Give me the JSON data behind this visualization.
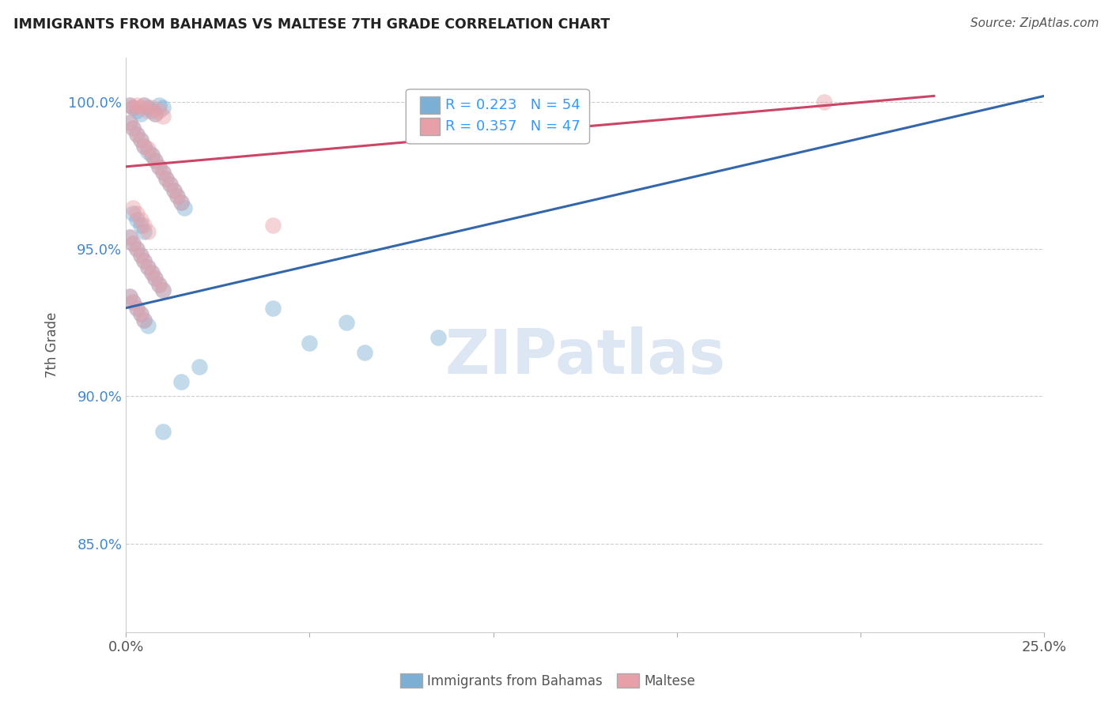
{
  "title": "IMMIGRANTS FROM BAHAMAS VS MALTESE 7TH GRADE CORRELATION CHART",
  "source": "Source: ZipAtlas.com",
  "ylabel": "7th Grade",
  "ytick_labels": [
    "100.0%",
    "95.0%",
    "90.0%",
    "85.0%"
  ],
  "ytick_values": [
    1.0,
    0.95,
    0.9,
    0.85
  ],
  "xlim": [
    0.0,
    0.25
  ],
  "ylim": [
    0.82,
    1.015
  ],
  "blue_color": "#7bafd4",
  "pink_color": "#e8a0a8",
  "blue_line_color": "#3366aa",
  "pink_line_color": "#cc4466",
  "R_blue": 0.223,
  "N_blue": 54,
  "R_pink": 0.357,
  "N_pink": 47,
  "blue_line_x": [
    0.0,
    0.25
  ],
  "blue_line_y": [
    0.93,
    1.002
  ],
  "pink_line_x": [
    0.0,
    0.22
  ],
  "pink_line_y": [
    0.978,
    1.002
  ],
  "blue_x": [
    0.001,
    0.002,
    0.003,
    0.004,
    0.005,
    0.006,
    0.007,
    0.008,
    0.009,
    0.01,
    0.001,
    0.002,
    0.003,
    0.004,
    0.005,
    0.006,
    0.007,
    0.008,
    0.009,
    0.01,
    0.011,
    0.012,
    0.013,
    0.014,
    0.015,
    0.016,
    0.002,
    0.003,
    0.004,
    0.005,
    0.001,
    0.002,
    0.003,
    0.004,
    0.005,
    0.006,
    0.007,
    0.008,
    0.009,
    0.01,
    0.001,
    0.002,
    0.003,
    0.004,
    0.005,
    0.006,
    0.04,
    0.06,
    0.085,
    0.05,
    0.065,
    0.02,
    0.015,
    0.01
  ],
  "blue_y": [
    0.999,
    0.998,
    0.997,
    0.996,
    0.999,
    0.998,
    0.997,
    0.996,
    0.999,
    0.998,
    0.993,
    0.991,
    0.989,
    0.987,
    0.985,
    0.983,
    0.982,
    0.98,
    0.978,
    0.976,
    0.974,
    0.972,
    0.97,
    0.968,
    0.966,
    0.964,
    0.962,
    0.96,
    0.958,
    0.956,
    0.954,
    0.952,
    0.95,
    0.948,
    0.946,
    0.944,
    0.942,
    0.94,
    0.938,
    0.936,
    0.934,
    0.932,
    0.93,
    0.928,
    0.926,
    0.924,
    0.93,
    0.925,
    0.92,
    0.918,
    0.915,
    0.91,
    0.905,
    0.888
  ],
  "pink_x": [
    0.001,
    0.002,
    0.003,
    0.004,
    0.005,
    0.006,
    0.007,
    0.008,
    0.009,
    0.01,
    0.001,
    0.002,
    0.003,
    0.004,
    0.005,
    0.006,
    0.007,
    0.008,
    0.009,
    0.01,
    0.011,
    0.012,
    0.013,
    0.014,
    0.015,
    0.002,
    0.003,
    0.004,
    0.005,
    0.006,
    0.001,
    0.002,
    0.003,
    0.004,
    0.005,
    0.006,
    0.007,
    0.008,
    0.009,
    0.01,
    0.001,
    0.002,
    0.003,
    0.004,
    0.005,
    0.04,
    0.19
  ],
  "pink_y": [
    0.999,
    0.998,
    0.999,
    0.998,
    0.999,
    0.997,
    0.998,
    0.996,
    0.997,
    0.995,
    0.993,
    0.991,
    0.989,
    0.987,
    0.985,
    0.984,
    0.982,
    0.98,
    0.978,
    0.976,
    0.974,
    0.972,
    0.97,
    0.968,
    0.966,
    0.964,
    0.962,
    0.96,
    0.958,
    0.956,
    0.954,
    0.952,
    0.95,
    0.948,
    0.946,
    0.944,
    0.942,
    0.94,
    0.938,
    0.936,
    0.934,
    0.932,
    0.93,
    0.928,
    0.926,
    0.958,
    1.0
  ]
}
